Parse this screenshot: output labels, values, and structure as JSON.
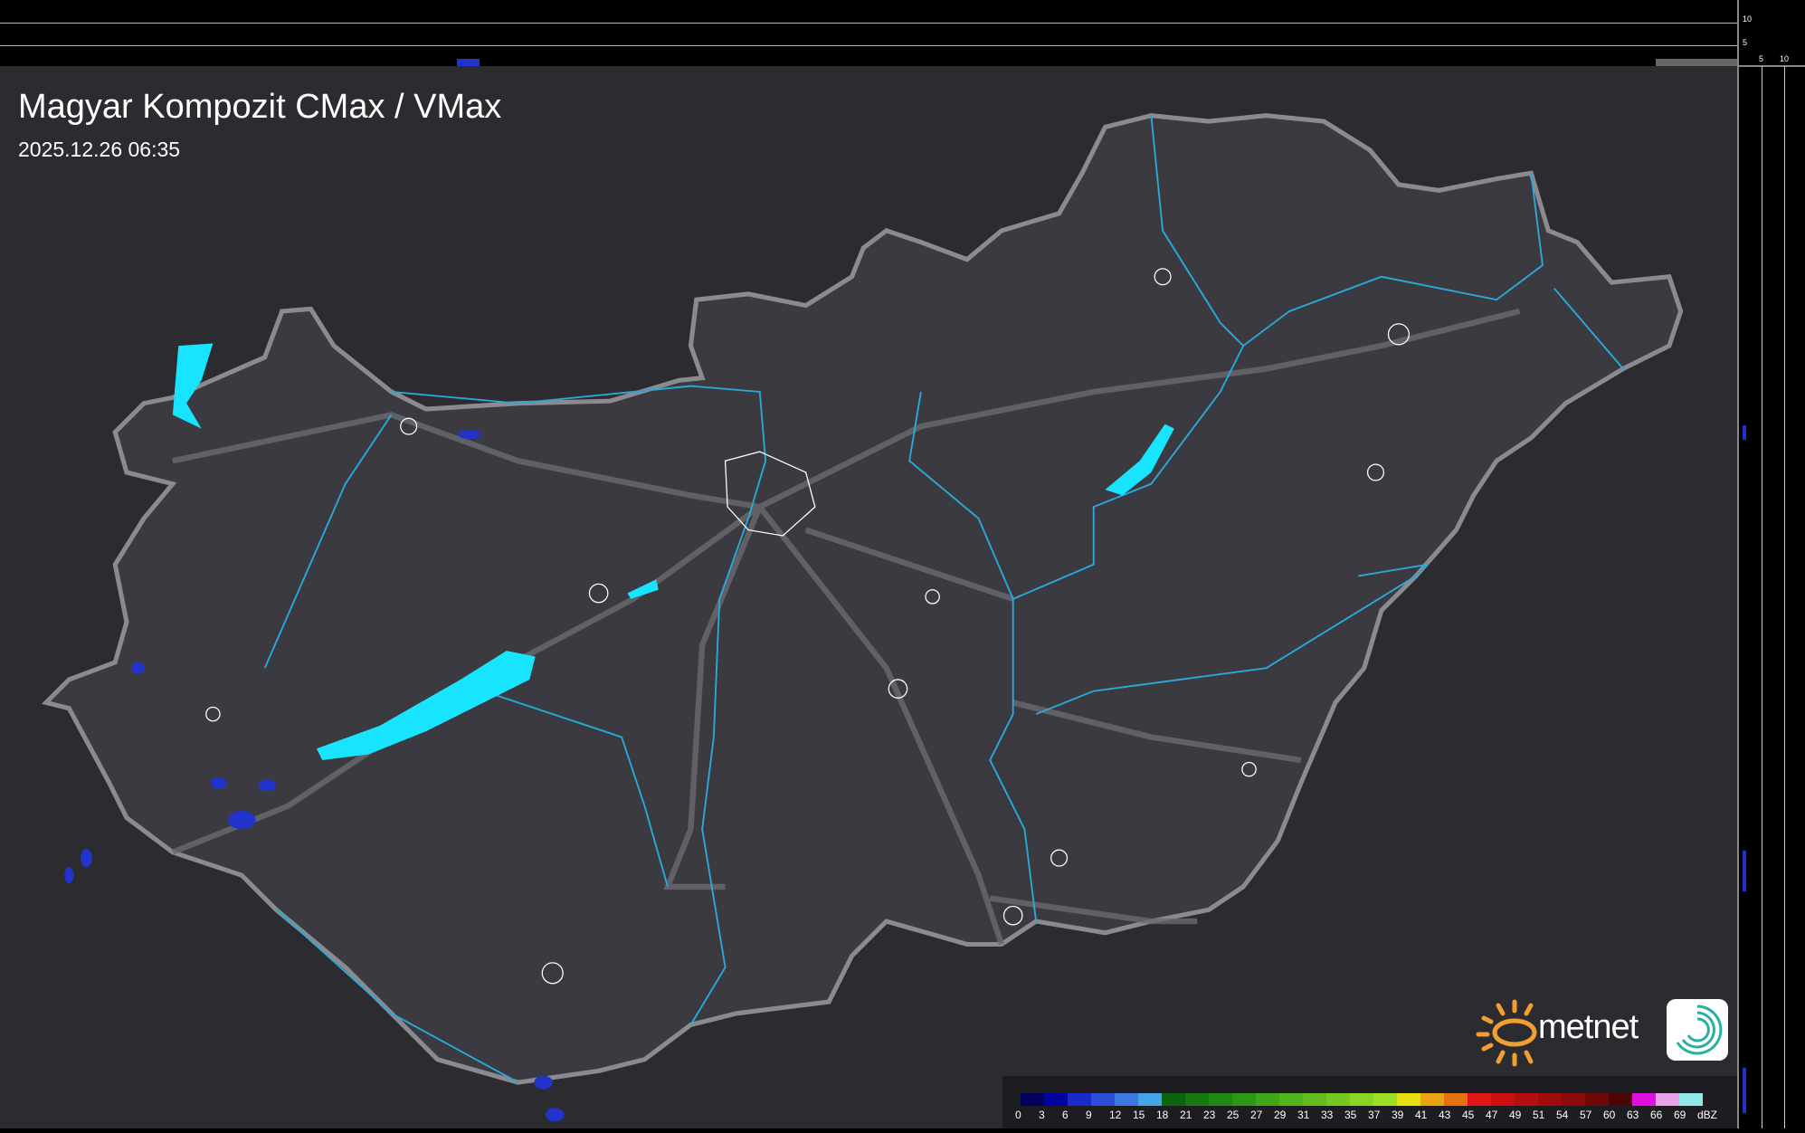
{
  "header": {
    "title": "Magyar Kompozit CMax / VMax",
    "timestamp": "2025.12.26 06:35"
  },
  "profile_axes": {
    "top_labels": [
      "10",
      "5"
    ],
    "right_labels": [
      "5",
      "10"
    ]
  },
  "legend": {
    "unit": "dBZ",
    "labels": [
      "0",
      "3",
      "6",
      "9",
      "12",
      "15",
      "18",
      "21",
      "23",
      "25",
      "27",
      "29",
      "31",
      "33",
      "35",
      "37",
      "39",
      "41",
      "43",
      "45",
      "47",
      "49",
      "51",
      "54",
      "57",
      "60",
      "63",
      "66",
      "69"
    ],
    "colors": [
      "#02025e",
      "#0303a0",
      "#1a2ac8",
      "#2b4dd8",
      "#3b78e0",
      "#43a4e8",
      "#0d6410",
      "#16780f",
      "#208a12",
      "#2e9816",
      "#3ea81a",
      "#52b41c",
      "#64bc1e",
      "#74c820",
      "#8ad424",
      "#9ee026",
      "#e8e010",
      "#e8a412",
      "#e87012",
      "#e01616",
      "#cc1010",
      "#b40e0e",
      "#a00c0c",
      "#8c0a0a",
      "#700808",
      "#4a0606",
      "#e010e0",
      "#e8a0e8",
      "#90e8e8"
    ]
  },
  "branding": {
    "name": "metnet",
    "sun_color": "#f0a030",
    "icon_color": "#2ab0a0"
  },
  "map_colors": {
    "lakes": "#19e4ff",
    "rivers": "#2aa8d8",
    "border": "#8a8a90",
    "precip": "#2233cc"
  }
}
